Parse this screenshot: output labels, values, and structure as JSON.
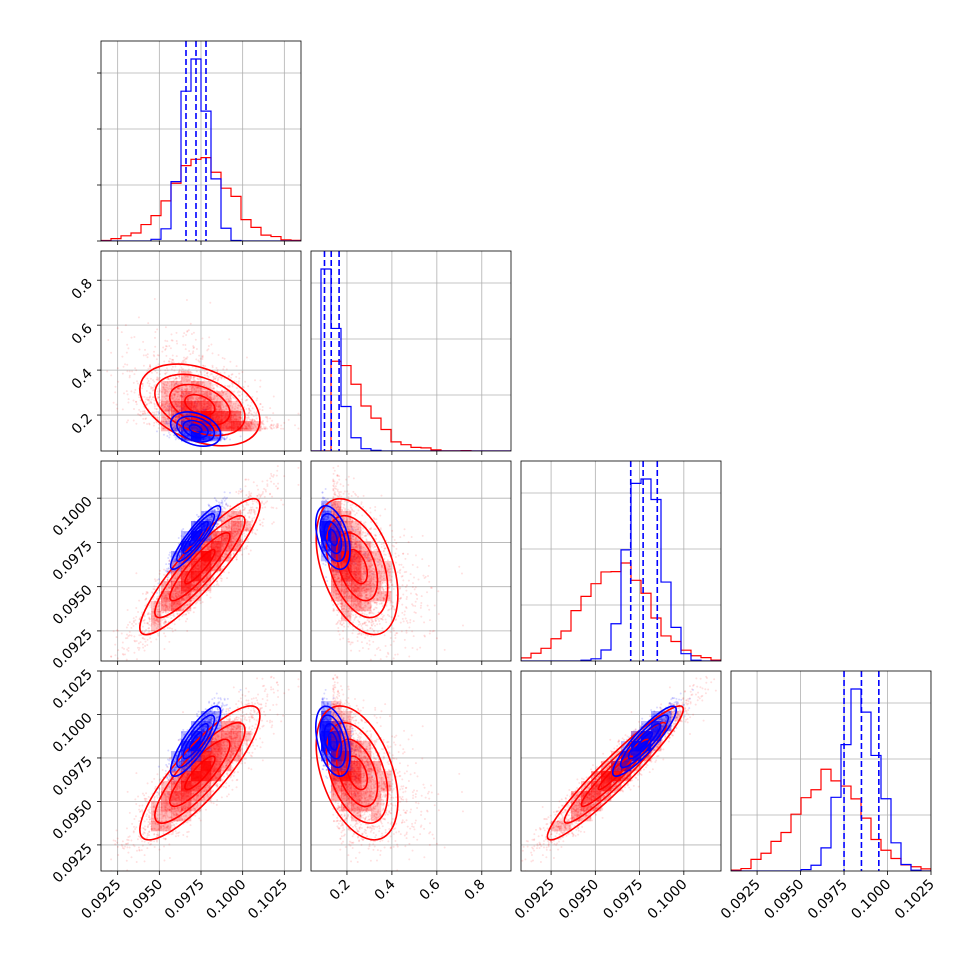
{
  "chart_data": {
    "type": "corner",
    "title": "",
    "parameters": [
      "",
      "",
      "",
      ""
    ],
    "grid": true,
    "series": [
      {
        "color": "#ff0000",
        "type": "histogram-step with scatter, 2D density and contours"
      },
      {
        "color": "#0000ff",
        "type": "histogram-step with scatter, 2D density, contours and dashed quantile lines"
      }
    ],
    "axes": {
      "p0": {
        "range": [
          0.0915,
          0.1035
        ],
        "ticks": [
          0.0925,
          0.095,
          0.0975,
          0.1,
          0.1025
        ],
        "tick_labels": [
          "0.0925",
          "0.0950",
          "0.0975",
          "0.1000",
          "0.1025"
        ]
      },
      "p1": {
        "range": [
          0.04,
          0.93
        ],
        "ticks": [
          0.2,
          0.4,
          0.6,
          0.8
        ],
        "tick_labels": [
          "0.2",
          "0.4",
          "0.6",
          "0.8"
        ]
      },
      "p2": {
        "range": [
          0.0908,
          0.1021
        ],
        "ticks": [
          0.0925,
          0.095,
          0.0975,
          0.1
        ],
        "tick_labels": [
          "0.0925",
          "0.0950",
          "0.0975",
          "0.1000"
        ]
      },
      "p3": {
        "range": [
          0.091,
          0.1025
        ],
        "ticks": [
          0.0925,
          0.095,
          0.0975,
          0.1,
          0.1025
        ],
        "tick_labels": [
          "0.0925",
          "0.0950",
          "0.0975",
          "0.1000",
          "0.1025"
        ]
      }
    },
    "distributions": {
      "red": {
        "mean": [
          0.0974,
          0.245,
          0.0961,
          0.0966
        ],
        "std": [
          0.0018,
          0.085,
          0.0019,
          0.0019
        ],
        "corr": {
          "0-1": -0.4,
          "0-2": 0.9,
          "0-3": 0.85,
          "1-2": -0.45,
          "1-3": -0.45,
          "2-3": 0.95
        }
      },
      "blue": {
        "mean": [
          0.0972,
          0.135,
          0.0978,
          0.0985
        ],
        "std": [
          0.00075,
          0.035,
          0.0009,
          0.001
        ],
        "corr": {
          "0-1": -0.3,
          "0-2": 0.9,
          "0-3": 0.85,
          "1-2": -0.4,
          "1-3": -0.4,
          "2-3": 0.9
        }
      }
    },
    "quantile_lines": {
      "color": "#0000ff",
      "p0": [
        0.0966,
        0.0972,
        0.0978
      ],
      "p1": [
        0.1,
        0.13,
        0.165
      ],
      "p2": [
        0.097,
        0.0977,
        0.0985
      ],
      "p3": [
        0.0975,
        0.0985,
        0.0995
      ]
    }
  }
}
